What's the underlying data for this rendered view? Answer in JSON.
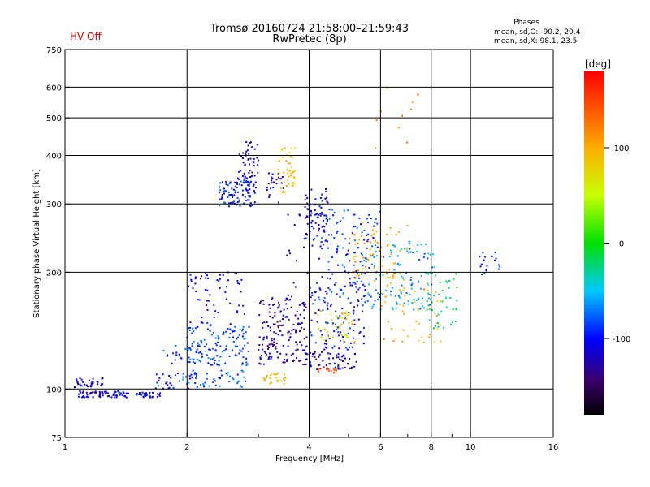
{
  "header": {
    "title_line1": "Tromsø 20160724 21:58:00–21:59:43",
    "title_line2": "RwPretec (8p)",
    "hv_status": "HV Off",
    "stats_title": "Phases",
    "stats_o": "mean, sd,O: -90.2, 20.4",
    "stats_x": "mean, sd,X:  98.1, 23.5"
  },
  "colors": {
    "hv_status": "#cc0000",
    "axis": "#000000",
    "background": "#ffffff"
  },
  "chart_data": {
    "type": "scatter",
    "title": "Tromsø 20160724 21:58:00–21:59:43",
    "subtitle": "RwPretec (8p)",
    "xlabel": "Frequency [MHz]",
    "ylabel": "Stationary phase Virtual Height [km]",
    "xscale": "log",
    "yscale": "log",
    "xlim": [
      1,
      16
    ],
    "ylim": [
      75,
      750
    ],
    "xticks": [
      1,
      2,
      4,
      6,
      8,
      10,
      16
    ],
    "yticks": [
      75,
      100,
      200,
      300,
      400,
      500,
      600,
      750
    ],
    "xgrid": [
      2,
      4,
      6,
      8,
      10
    ],
    "ygrid": [
      100,
      200,
      300,
      400,
      500,
      600
    ],
    "xminor": [
      3,
      5,
      7,
      9
    ],
    "colorbar": {
      "label": "[deg]",
      "range": [
        -180,
        180
      ],
      "ticks": [
        100,
        0,
        -100
      ]
    },
    "clusters": [
      {
        "fmin": 1.05,
        "fmax": 1.25,
        "hmin": 101,
        "hmax": 107,
        "phase": -115,
        "count": 35
      },
      {
        "fmin": 1.08,
        "fmax": 1.45,
        "hmin": 95,
        "hmax": 99,
        "phase": -110,
        "count": 70
      },
      {
        "fmin": 1.5,
        "fmax": 1.72,
        "hmin": 95,
        "hmax": 98,
        "phase": -105,
        "count": 30
      },
      {
        "fmin": 1.65,
        "fmax": 2.05,
        "hmin": 100,
        "hmax": 110,
        "phase": -100,
        "count": 25
      },
      {
        "fmin": 1.75,
        "fmax": 2.2,
        "hmin": 115,
        "hmax": 130,
        "phase": -90,
        "count": 30
      },
      {
        "fmin": 1.95,
        "fmax": 2.8,
        "hmin": 101,
        "hmax": 112,
        "phase": -80,
        "count": 50
      },
      {
        "fmin": 2.0,
        "fmax": 2.85,
        "hmin": 115,
        "hmax": 145,
        "phase": -85,
        "count": 120
      },
      {
        "fmin": 2.0,
        "fmax": 2.8,
        "hmin": 145,
        "hmax": 200,
        "phase": -110,
        "count": 60
      },
      {
        "fmin": 2.4,
        "fmax": 2.95,
        "hmin": 295,
        "hmax": 345,
        "phase": -95,
        "count": 90
      },
      {
        "fmin": 2.65,
        "fmax": 3.0,
        "hmin": 330,
        "hmax": 440,
        "phase": -115,
        "count": 60
      },
      {
        "fmin": 3.15,
        "fmax": 3.55,
        "hmin": 300,
        "hmax": 360,
        "phase": -125,
        "count": 25
      },
      {
        "fmin": 3.35,
        "fmax": 3.7,
        "hmin": 320,
        "hmax": 420,
        "phase": 85,
        "count": 45
      },
      {
        "fmin": 3.0,
        "fmax": 3.95,
        "hmin": 115,
        "hmax": 175,
        "phase": -130,
        "count": 170
      },
      {
        "fmin": 3.05,
        "fmax": 3.5,
        "hmin": 103,
        "hmax": 110,
        "phase": 95,
        "count": 25
      },
      {
        "fmin": 3.9,
        "fmax": 4.5,
        "hmin": 230,
        "hmax": 330,
        "phase": -110,
        "count": 80
      },
      {
        "fmin": 3.9,
        "fmax": 5.3,
        "hmin": 112,
        "hmax": 125,
        "phase": -120,
        "count": 60
      },
      {
        "fmin": 4.0,
        "fmax": 5.5,
        "hmin": 125,
        "hmax": 190,
        "phase": -100,
        "count": 110
      },
      {
        "fmin": 4.2,
        "fmax": 5.2,
        "hmin": 130,
        "hmax": 160,
        "phase": 75,
        "count": 40
      },
      {
        "fmin": 4.2,
        "fmax": 4.7,
        "hmin": 110,
        "hmax": 115,
        "phase": 150,
        "count": 15
      },
      {
        "fmin": 4.2,
        "fmax": 6.0,
        "hmin": 170,
        "hmax": 290,
        "phase": -90,
        "count": 120
      },
      {
        "fmin": 5.0,
        "fmax": 7.0,
        "hmin": 190,
        "hmax": 270,
        "phase": 100,
        "count": 70
      },
      {
        "fmin": 5.5,
        "fmax": 8.2,
        "hmin": 160,
        "hmax": 240,
        "phase": -60,
        "count": 110
      },
      {
        "fmin": 6.0,
        "fmax": 8.5,
        "hmin": 130,
        "hmax": 190,
        "phase": 95,
        "count": 50
      },
      {
        "fmin": 7.8,
        "fmax": 9.3,
        "hmin": 140,
        "hmax": 200,
        "phase": -20,
        "count": 40
      },
      {
        "fmin": 10.4,
        "fmax": 12.0,
        "hmin": 195,
        "hmax": 225,
        "phase": -95,
        "count": 20
      },
      {
        "fmin": 5.8,
        "fmax": 7.5,
        "hmin": 400,
        "hmax": 620,
        "phase": 120,
        "count": 10
      },
      {
        "fmin": 3.5,
        "fmax": 4.0,
        "hmin": 180,
        "hmax": 290,
        "phase": -120,
        "count": 15
      }
    ]
  }
}
